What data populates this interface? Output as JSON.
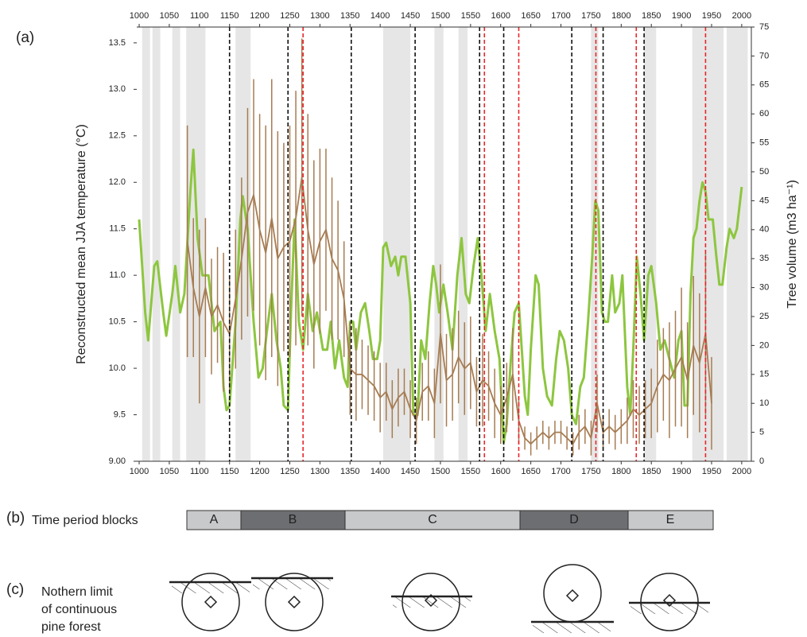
{
  "chart_data": {
    "type": "line",
    "panel_label": "(a)",
    "y_label": "Reconstructed mean JJA temperature (°C)",
    "y2_label": "Tree volume (m3 ha⁻¹)",
    "xlim": [
      996,
      2016
    ],
    "xticks": [
      1000,
      1050,
      1100,
      1150,
      1200,
      1250,
      1300,
      1350,
      1400,
      1450,
      1500,
      1550,
      1600,
      1650,
      1700,
      1750,
      1800,
      1850,
      1900,
      1950,
      2000
    ],
    "ylim": [
      9,
      13.67
    ],
    "yticks": [
      {
        "value": 9,
        "label": "9.00"
      },
      9.5,
      {
        "value": 10,
        "label": "10.0"
      },
      10.5,
      {
        "value": 11,
        "label": "11.0"
      },
      11.5,
      {
        "value": 12,
        "label": "12.0"
      },
      12.5,
      {
        "value": 13,
        "label": "13.0"
      },
      13.5
    ],
    "y2lim": [
      0,
      75
    ],
    "y2ticks": [
      0,
      5,
      10,
      15,
      20,
      25,
      30,
      35,
      40,
      45,
      50,
      55,
      60,
      65,
      70,
      75
    ],
    "shaded_periods": [
      [
        1005,
        1018
      ],
      [
        1022,
        1035
      ],
      [
        1055,
        1068
      ],
      [
        1078,
        1110
      ],
      [
        1160,
        1185
      ],
      [
        1405,
        1450
      ],
      [
        1490,
        1505
      ],
      [
        1530,
        1545
      ],
      [
        1750,
        1762
      ],
      [
        1838,
        1858
      ],
      [
        1918,
        1970
      ],
      [
        1975,
        2010
      ]
    ],
    "shade_color": "#e6e6e6",
    "black_dashed_years": [
      1150,
      1247,
      1352,
      1458,
      1565,
      1605,
      1718,
      1770,
      1838
    ],
    "red_dashed_years": [
      1272,
      1573,
      1630,
      1758,
      1825,
      1940
    ],
    "series": [
      {
        "color": "#8dc63f",
        "axis": "y",
        "x": [
          1000,
          1010,
          1015,
          1025,
          1030,
          1040,
          1045,
          1055,
          1060,
          1068,
          1075,
          1085,
          1090,
          1097,
          1105,
          1115,
          1120,
          1125,
          1135,
          1140,
          1145,
          1150,
          1160,
          1168,
          1172,
          1180,
          1190,
          1198,
          1205,
          1212,
          1220,
          1228,
          1235,
          1240,
          1247,
          1252,
          1258,
          1265,
          1272,
          1280,
          1288,
          1295,
          1305,
          1312,
          1318,
          1325,
          1332,
          1340,
          1346,
          1350,
          1355,
          1360,
          1368,
          1375,
          1382,
          1388,
          1395,
          1400,
          1405,
          1410,
          1418,
          1425,
          1430,
          1435,
          1442,
          1450,
          1455,
          1462,
          1468,
          1475,
          1482,
          1488,
          1493,
          1498,
          1505,
          1512,
          1520,
          1528,
          1535,
          1542,
          1548,
          1555,
          1562,
          1568,
          1575,
          1582,
          1590,
          1598,
          1605,
          1610,
          1617,
          1623,
          1630,
          1635,
          1640,
          1645,
          1650,
          1658,
          1663,
          1670,
          1677,
          1685,
          1692,
          1698,
          1705,
          1712,
          1718,
          1725,
          1732,
          1738,
          1745,
          1752,
          1757,
          1762,
          1768,
          1773,
          1778,
          1785,
          1790,
          1797,
          1802,
          1810,
          1815,
          1820,
          1826,
          1832,
          1838,
          1845,
          1850,
          1858,
          1865,
          1872,
          1880,
          1888,
          1895,
          1900,
          1905,
          1910,
          1915,
          1920,
          1925,
          1930,
          1935,
          1940,
          1945,
          1952,
          1958,
          1963,
          1968,
          1975,
          1980,
          1987,
          1992,
          2000
        ],
        "values": [
          11.6,
          10.6,
          10.3,
          11.1,
          11.15,
          10.6,
          10.35,
          10.8,
          11.1,
          10.6,
          10.8,
          11.9,
          12.35,
          11.4,
          11.0,
          11.0,
          10.7,
          10.4,
          10.5,
          9.8,
          9.55,
          9.6,
          10.5,
          11.6,
          11.85,
          11.5,
          10.5,
          9.9,
          10.0,
          10.4,
          10.8,
          10.3,
          10.0,
          9.6,
          9.55,
          10.6,
          11.6,
          10.5,
          10.2,
          10.8,
          10.4,
          10.6,
          10.2,
          10.2,
          10.5,
          10.0,
          10.3,
          9.9,
          9.8,
          10.5,
          10.5,
          10.2,
          10.6,
          10.7,
          10.4,
          10.1,
          10.1,
          10.3,
          11.3,
          11.35,
          11.1,
          11.2,
          11.0,
          11.2,
          11.2,
          10.7,
          9.5,
          9.5,
          10.3,
          10.1,
          10.7,
          11.1,
          10.9,
          10.6,
          10.9,
          10.6,
          10.2,
          11.0,
          11.4,
          10.8,
          10.7,
          11.1,
          11.4,
          11.0,
          10.4,
          10.8,
          10.4,
          10.1,
          9.2,
          9.4,
          10.1,
          10.6,
          10.7,
          10.2,
          9.7,
          9.5,
          10.2,
          11.0,
          10.9,
          10.0,
          9.7,
          9.6,
          10.1,
          10.4,
          10.3,
          10.0,
          9.5,
          9.4,
          9.8,
          9.9,
          10.5,
          11.2,
          11.8,
          11.7,
          10.6,
          10.5,
          10.5,
          11.0,
          10.6,
          10.7,
          11.0,
          9.8,
          9.5,
          10.2,
          11.2,
          10.8,
          10.3,
          11.0,
          11.1,
          10.7,
          10.2,
          10.3,
          10.1,
          9.9,
          10.3,
          10.4,
          9.6,
          9.6,
          10.8,
          11.4,
          11.5,
          11.8,
          12.0,
          11.9,
          11.6,
          11.6,
          11.2,
          10.9,
          10.9,
          11.3,
          11.5,
          11.4,
          11.5,
          11.95
        ]
      },
      {
        "color": "#a67c52",
        "axis": "y2",
        "x": [
          1080,
          1090,
          1100,
          1110,
          1120,
          1130,
          1140,
          1150,
          1160,
          1170,
          1180,
          1190,
          1200,
          1210,
          1220,
          1230,
          1240,
          1250,
          1260,
          1270,
          1280,
          1290,
          1300,
          1310,
          1320,
          1330,
          1340,
          1350,
          1360,
          1370,
          1380,
          1390,
          1400,
          1410,
          1420,
          1430,
          1440,
          1450,
          1460,
          1470,
          1480,
          1490,
          1500,
          1510,
          1520,
          1530,
          1540,
          1550,
          1560,
          1570,
          1580,
          1590,
          1600,
          1610,
          1620,
          1630,
          1640,
          1650,
          1660,
          1670,
          1680,
          1690,
          1700,
          1710,
          1720,
          1730,
          1740,
          1750,
          1760,
          1770,
          1780,
          1790,
          1800,
          1810,
          1820,
          1830,
          1840,
          1850,
          1860,
          1870,
          1880,
          1890,
          1900,
          1910,
          1920,
          1930,
          1940,
          1950
        ],
        "values": [
          38,
          30,
          25,
          30,
          25,
          27,
          24,
          22,
          28,
          35,
          43,
          46,
          40,
          36,
          42,
          35,
          37,
          38,
          42,
          49,
          40,
          34,
          38,
          40,
          35,
          33,
          28,
          16,
          15,
          15,
          14,
          13,
          11,
          12,
          9,
          11,
          12,
          9,
          7,
          12,
          13,
          10,
          22,
          14,
          15,
          18,
          16,
          17,
          12,
          14,
          13,
          10,
          8,
          11,
          15,
          7,
          4,
          3,
          4,
          5,
          4,
          5,
          5,
          4,
          3,
          5,
          6,
          4,
          10,
          5,
          6,
          5,
          6,
          7,
          9,
          8,
          9,
          10,
          13,
          15,
          14,
          16,
          18,
          14,
          20,
          17,
          22,
          10
        ],
        "errors": [
          20,
          12,
          15,
          12,
          10,
          10,
          12,
          10,
          12,
          14,
          18,
          20,
          20,
          22,
          24,
          22,
          18,
          20,
          22,
          24,
          20,
          18,
          16,
          14,
          14,
          12,
          10,
          8,
          8,
          6,
          6,
          6,
          6,
          5,
          5,
          5,
          4,
          5,
          4,
          5,
          6,
          6,
          12,
          8,
          8,
          8,
          8,
          8,
          6,
          8,
          6,
          6,
          5,
          6,
          8,
          4,
          2,
          2,
          2,
          2,
          2,
          2,
          2,
          2,
          2,
          3,
          3,
          3,
          5,
          3,
          3,
          3,
          3,
          4,
          5,
          5,
          5,
          6,
          8,
          8,
          10,
          10,
          12,
          10,
          12,
          12,
          14,
          8
        ]
      }
    ]
  },
  "panel_b": {
    "label": "(b)",
    "title": "Time period blocks",
    "blocks": [
      "A",
      "B",
      "C",
      "D",
      "E"
    ]
  },
  "panel_c": {
    "label": "(c)",
    "title_lines": [
      "Nothern limit",
      "of continuous",
      "pine forest"
    ]
  }
}
